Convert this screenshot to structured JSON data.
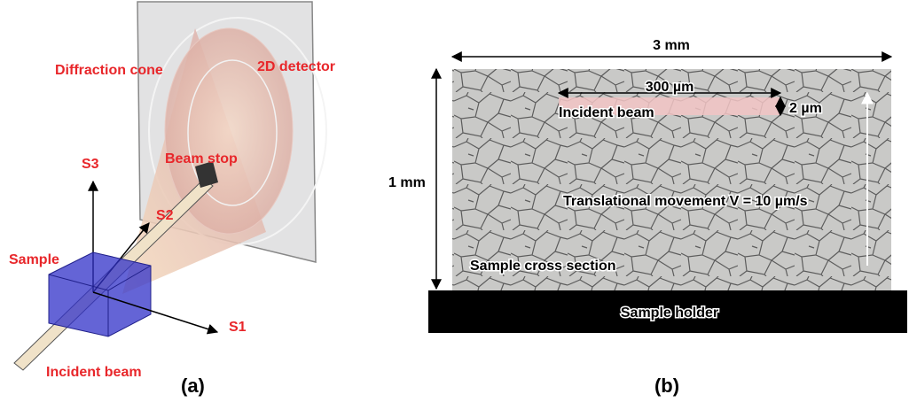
{
  "panel_a": {
    "label": "(a)",
    "diffraction_cone": "Diffraction cone",
    "detector": "2D detector",
    "beam_stop": "Beam stop",
    "axis_s1": "S1",
    "axis_s2": "S2",
    "axis_s3": "S3",
    "sample": "Sample",
    "incident_beam": "Incident beam"
  },
  "panel_b": {
    "label": "(b)",
    "width": "3 mm",
    "height": "1 mm",
    "beam_width": "300 µm",
    "beam_height": "2 µm",
    "incident_beam": "Incident beam",
    "movement": "Translational movement V = 10 µm/s",
    "cross_section": "Sample cross section",
    "holder": "Sample holder"
  }
}
